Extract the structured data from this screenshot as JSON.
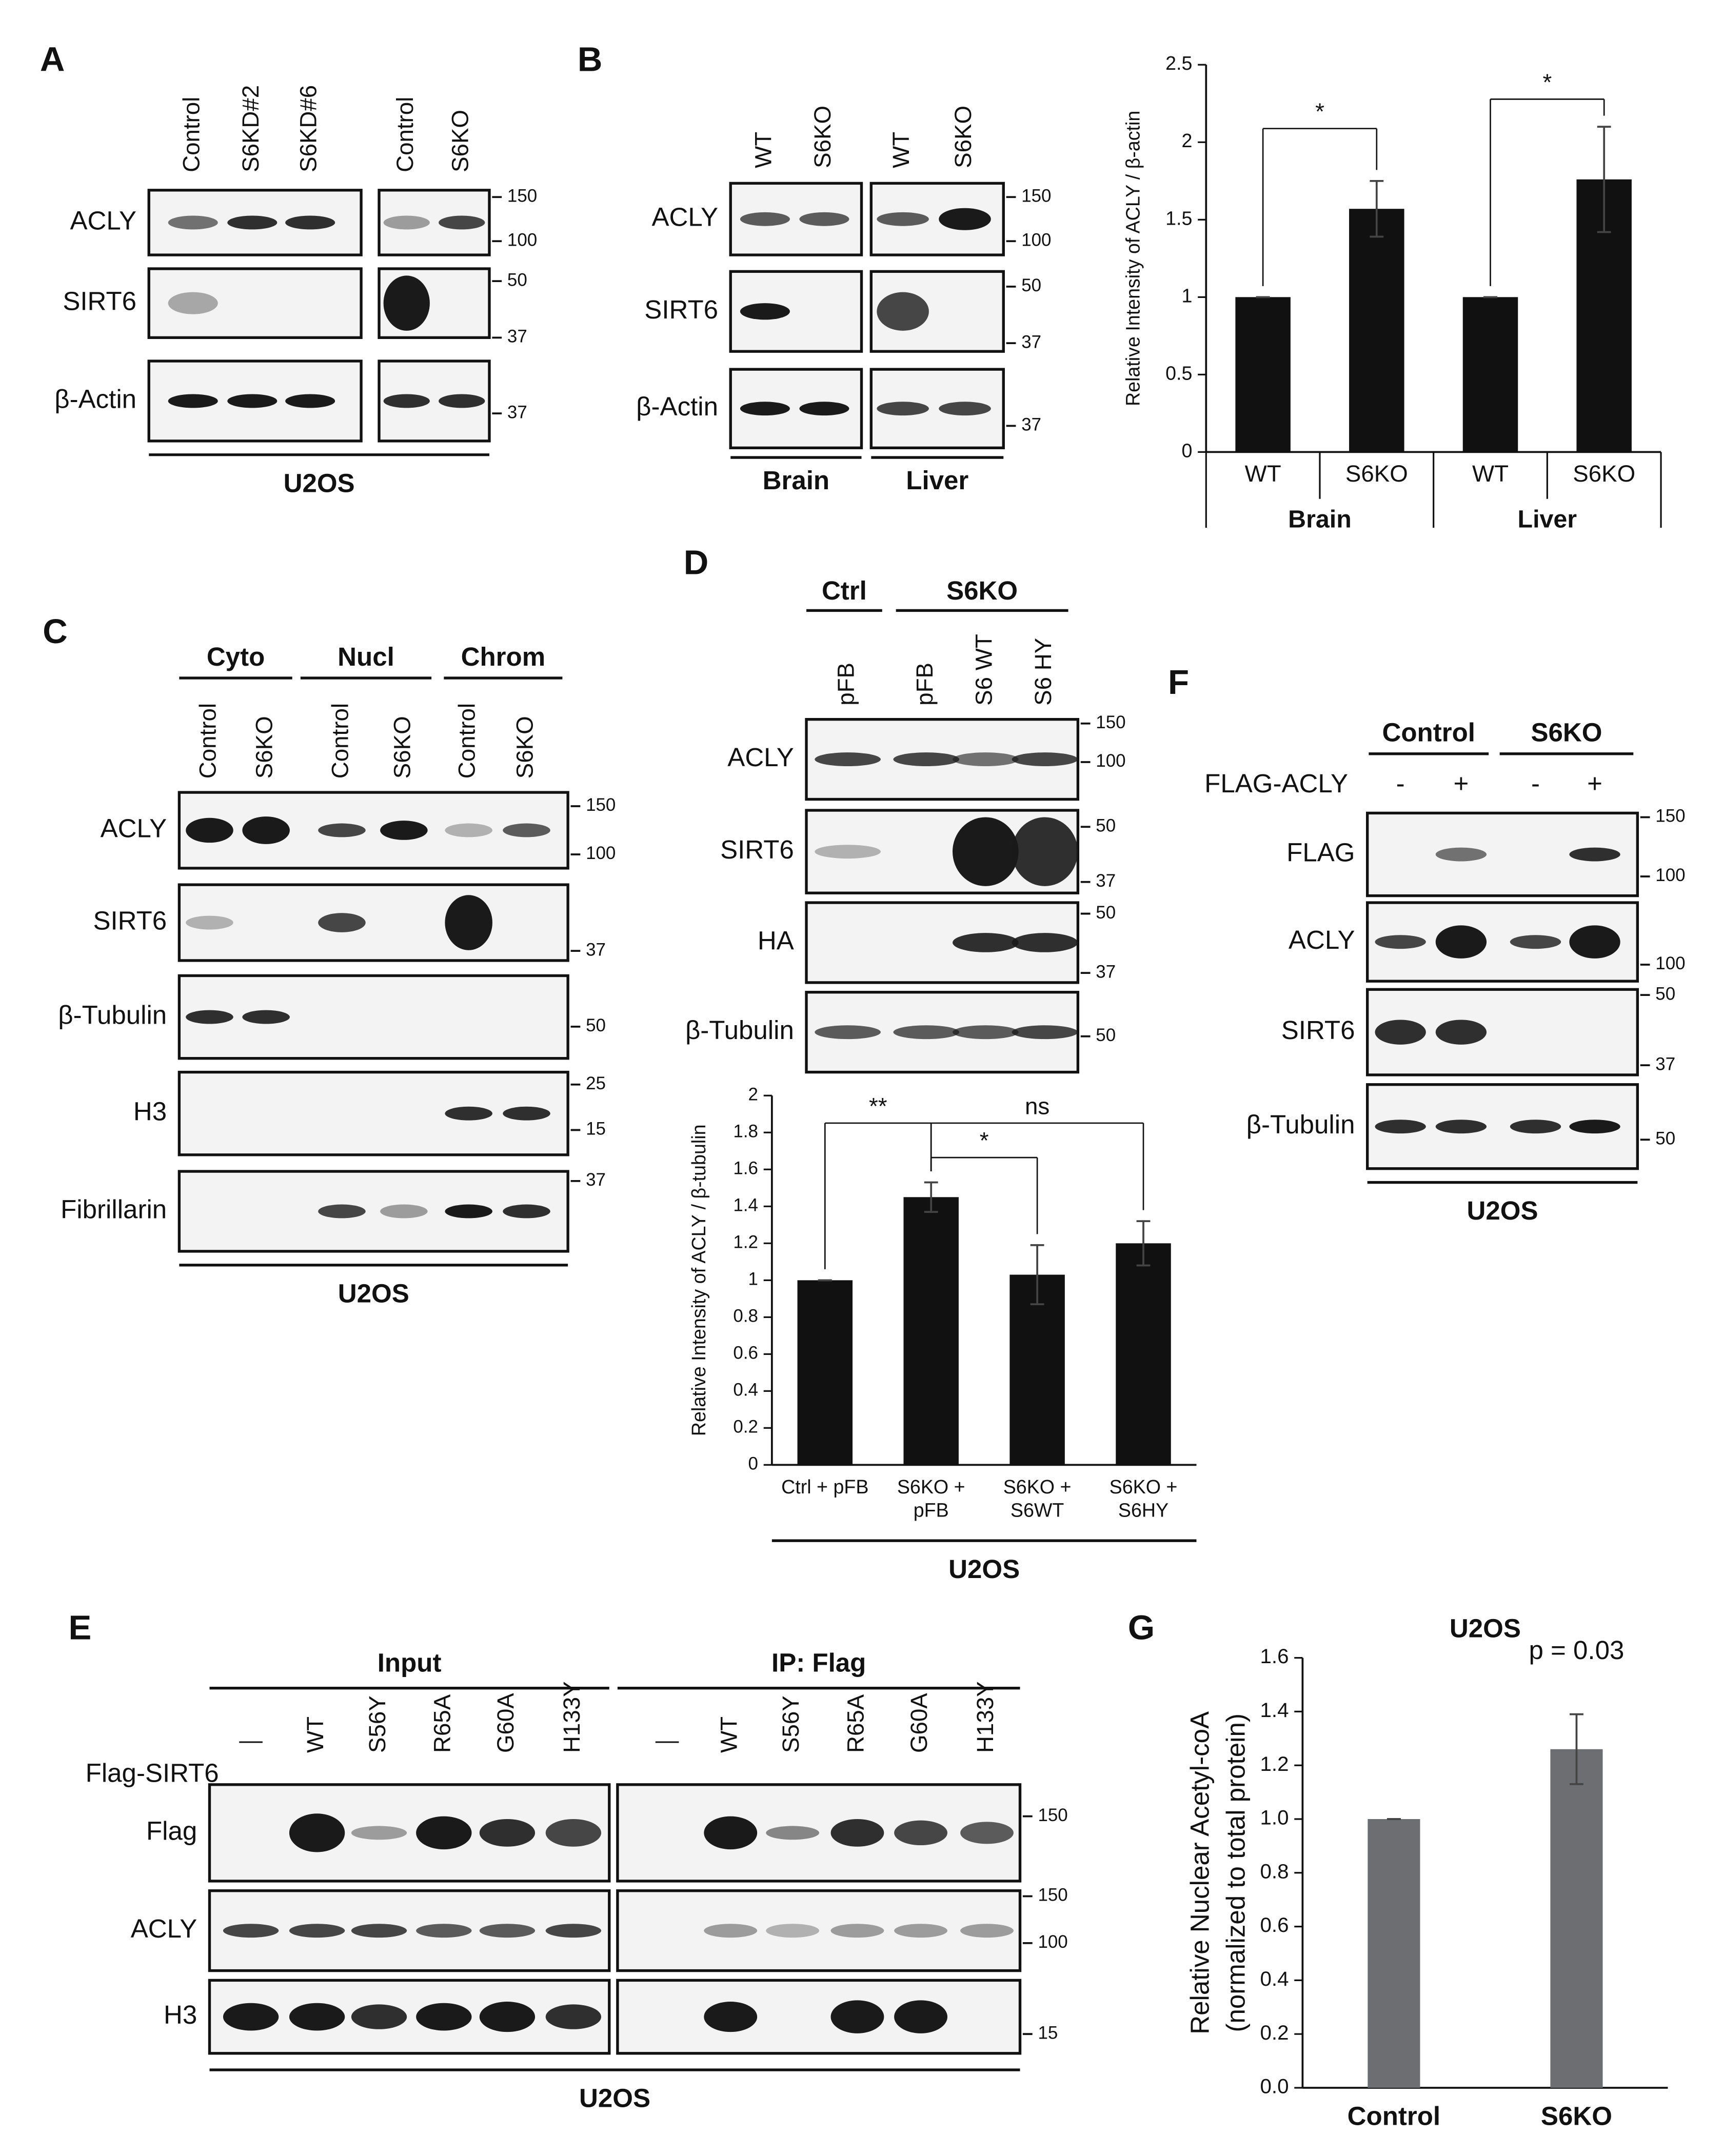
{
  "panel_labels": [
    "A",
    "B",
    "C",
    "D",
    "E",
    "F",
    "G"
  ],
  "A": {
    "lanes": [
      [
        "Control",
        "S6KD#2",
        "S6KD#6"
      ],
      [
        "Control",
        "S6KO"
      ]
    ],
    "rows": [
      "ACLY",
      "SIRT6",
      "β-Actin"
    ],
    "markers": [
      150,
      100,
      50,
      37,
      37
    ],
    "cell": "U2OS"
  },
  "B": {
    "lanes": [
      [
        "WT",
        "S6KO"
      ],
      [
        "WT",
        "S6KO"
      ]
    ],
    "rows": [
      "ACLY",
      "SIRT6",
      "β-Actin"
    ],
    "markers": [
      150,
      100,
      50,
      37,
      37
    ],
    "tissues": [
      "Brain",
      "Liver"
    ]
  },
  "C": {
    "groups": [
      "Cyto",
      "Nucl",
      "Chrom"
    ],
    "lanes": [
      "Control",
      "S6KO",
      "Control",
      "S6KO",
      "Control",
      "S6KO"
    ],
    "rows": [
      "ACLY",
      "SIRT6",
      "β-Tubulin",
      "H3",
      "Fibrillarin"
    ],
    "markers": [
      150,
      100,
      37,
      50,
      25,
      15,
      37
    ],
    "cell": "U2OS"
  },
  "D": {
    "groups": [
      "Ctrl",
      "S6KO"
    ],
    "lanes": [
      "pFB",
      "pFB",
      "S6 WT",
      "S6 HY"
    ],
    "rows": [
      "ACLY",
      "SIRT6",
      "HA",
      "β-Tubulin"
    ],
    "markers": [
      150,
      100,
      50,
      37,
      50,
      37,
      50
    ]
  },
  "E": {
    "groups": [
      "Input",
      "IP: Flag"
    ],
    "construct": "Flag-SIRT6",
    "lanes": [
      [
        "—",
        "WT",
        "S56Y",
        "R65A",
        "G60A",
        "H133Y"
      ],
      [
        "—",
        "WT",
        "S56Y",
        "R65A",
        "G60A",
        "H133Y"
      ]
    ],
    "rows": [
      "Flag",
      "ACLY",
      "H3"
    ],
    "markers": [
      150,
      150,
      100,
      15
    ],
    "cell": "U2OS"
  },
  "F": {
    "groups": [
      "Control",
      "S6KO"
    ],
    "construct": "FLAG-ACLY",
    "signs": [
      "-",
      "+",
      "-",
      "+"
    ],
    "rows": [
      "FLAG",
      "ACLY",
      "SIRT6",
      "β-Tubulin"
    ],
    "markers": [
      150,
      100,
      100,
      50,
      37,
      50
    ],
    "cell": "U2OS"
  },
  "chart_data": [
    {
      "type": "bar",
      "ylabel": "Relative Intensity of ACLY / β-actin",
      "categories": [
        "WT",
        "S6KO",
        "WT",
        "S6KO"
      ],
      "groups": [
        "Brain",
        "Liver"
      ],
      "values": [
        1,
        1.57,
        1,
        1.76
      ],
      "errors": [
        0,
        0.18,
        0,
        0.34
      ],
      "color": "#111111",
      "ylim": [
        0,
        2.5
      ],
      "yticks": [
        0,
        0.5,
        1,
        1.5,
        2,
        2.5
      ],
      "annotations": [
        {
          "text": "*",
          "between": [
            0,
            1
          ]
        },
        {
          "text": "*",
          "between": [
            2,
            3
          ]
        }
      ]
    },
    {
      "type": "bar",
      "ylabel": "Relative Intensity of ACLY / β-tubulin",
      "categories": [
        [
          "Ctrl + pFB"
        ],
        [
          "S6KO +",
          "pFB"
        ],
        [
          "S6KO +",
          "S6WT"
        ],
        [
          "S6KO +",
          "S6HY"
        ]
      ],
      "values": [
        1,
        1.45,
        1.03,
        1.2
      ],
      "errors": [
        0,
        0.08,
        0.16,
        0.12
      ],
      "color": "#111111",
      "ylim": [
        0,
        2
      ],
      "yticks": [
        0,
        0.2,
        0.4,
        0.6,
        0.8,
        1,
        1.2,
        1.4,
        1.6,
        1.8,
        2
      ],
      "annotations": [
        {
          "text": "**",
          "between": [
            0,
            1
          ]
        },
        {
          "text": "*",
          "between": [
            1,
            2
          ]
        },
        {
          "text": "ns",
          "between": [
            1,
            3
          ]
        }
      ],
      "footer": "U2OS"
    },
    {
      "type": "bar",
      "title": "U2OS",
      "ylabel": [
        "Relative Nuclear Acetyl-coA",
        "(normalized to total protein)"
      ],
      "categories": [
        "Control",
        "S6KO"
      ],
      "values": [
        1,
        1.26
      ],
      "errors": [
        0,
        0.13
      ],
      "color": "#6d6e71",
      "ylim": [
        0,
        1.6
      ],
      "yticks": [
        {
          "value": 0,
          "label": "0.0"
        },
        0.2,
        0.4,
        0.6,
        0.8,
        {
          "value": 1,
          "label": "1.0"
        },
        1.2,
        1.4,
        1.6
      ],
      "annotations": [
        {
          "text": "p = 0.03",
          "between": [
            1,
            1
          ]
        }
      ]
    }
  ]
}
